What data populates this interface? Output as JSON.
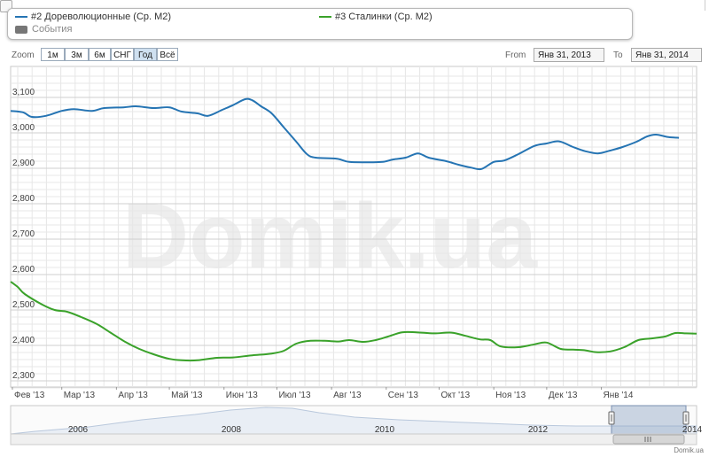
{
  "legend": {
    "series1": "#2 Дореволюционные (Ср. M2)",
    "series2": "#3 Сталинки (Ср. M2)",
    "events": "События"
  },
  "toolbar": {
    "zoom_label": "Zoom",
    "buttons": [
      "1м",
      "3м",
      "6м",
      "СНГ",
      "Год",
      "Всё"
    ],
    "active_button": "Год",
    "from_label": "From",
    "from_value": "Янв 31, 2013",
    "to_label": "To",
    "to_value": "Янв 31, 2014"
  },
  "watermark": "Domik.ua",
  "credit": "Domik.ua",
  "colors": {
    "series1": "#2574b3",
    "series2": "#3aa22a",
    "grid": "#dcdcdc",
    "navigator": "#8fa4c4"
  },
  "navigator": {
    "years": [
      "2006",
      "2008",
      "2010",
      "2012",
      "2014"
    ]
  },
  "chart_data": {
    "type": "line",
    "x_ticks": [
      "Фев '13",
      "Мар '13",
      "Апр '13",
      "Май '13",
      "Июн '13",
      "Июл '13",
      "Авг '13",
      "Сен '13",
      "Окт '13",
      "Ноя '13",
      "Дек '13",
      "Янв '14"
    ],
    "y_ticks": [
      "3,100",
      "3,000",
      "2,900",
      "2,800",
      "2,700",
      "2,600",
      "2,500",
      "2,400",
      "2,300"
    ],
    "ylim": [
      2270,
      3170
    ],
    "grid": true,
    "series": [
      {
        "name": "#2 Дореволюционные (Ср. M2)",
        "points": [
          [
            "2013-01-31",
            3062
          ],
          [
            "2013-02-07",
            3058
          ],
          [
            "2013-02-12",
            3045
          ],
          [
            "2013-02-20",
            3048
          ],
          [
            "2013-03-01",
            3062
          ],
          [
            "2013-03-08",
            3067
          ],
          [
            "2013-03-18",
            3062
          ],
          [
            "2013-03-25",
            3070
          ],
          [
            "2013-04-05",
            3072
          ],
          [
            "2013-04-12",
            3075
          ],
          [
            "2013-04-22",
            3070
          ],
          [
            "2013-05-01",
            3072
          ],
          [
            "2013-05-08",
            3060
          ],
          [
            "2013-05-17",
            3055
          ],
          [
            "2013-05-23",
            3048
          ],
          [
            "2013-05-31",
            3065
          ],
          [
            "2013-06-06",
            3078
          ],
          [
            "2013-06-13",
            3095
          ],
          [
            "2013-06-17",
            3092
          ],
          [
            "2013-06-22",
            3075
          ],
          [
            "2013-06-28",
            3055
          ],
          [
            "2013-07-05",
            3015
          ],
          [
            "2013-07-12",
            2975
          ],
          [
            "2013-07-18",
            2940
          ],
          [
            "2013-07-23",
            2930
          ],
          [
            "2013-08-04",
            2927
          ],
          [
            "2013-08-11",
            2918
          ],
          [
            "2013-08-23",
            2917
          ],
          [
            "2013-08-30",
            2918
          ],
          [
            "2013-09-05",
            2925
          ],
          [
            "2013-09-12",
            2930
          ],
          [
            "2013-09-19",
            2942
          ],
          [
            "2013-09-25",
            2930
          ],
          [
            "2013-10-05",
            2920
          ],
          [
            "2013-10-12",
            2910
          ],
          [
            "2013-10-19",
            2902
          ],
          [
            "2013-10-25",
            2898
          ],
          [
            "2013-11-01",
            2918
          ],
          [
            "2013-11-07",
            2922
          ],
          [
            "2013-11-15",
            2940
          ],
          [
            "2013-11-24",
            2963
          ],
          [
            "2013-12-01",
            2970
          ],
          [
            "2013-12-08",
            2976
          ],
          [
            "2013-12-16",
            2960
          ],
          [
            "2013-12-23",
            2948
          ],
          [
            "2013-12-30",
            2942
          ],
          [
            "2014-01-06",
            2950
          ],
          [
            "2014-01-13",
            2960
          ],
          [
            "2014-01-21",
            2975
          ],
          [
            "2014-01-27",
            2990
          ],
          [
            "2014-02-01",
            2995
          ],
          [
            "2014-02-08",
            2988
          ],
          [
            "2014-02-14",
            2986
          ]
        ]
      },
      {
        "name": "#3 Сталинки (Ср. M2)",
        "points": [
          [
            "2013-01-31",
            2580
          ],
          [
            "2013-02-04",
            2565
          ],
          [
            "2013-02-08",
            2545
          ],
          [
            "2013-02-18",
            2515
          ],
          [
            "2013-02-25",
            2500
          ],
          [
            "2013-03-04",
            2495
          ],
          [
            "2013-03-12",
            2480
          ],
          [
            "2013-03-21",
            2460
          ],
          [
            "2013-03-29",
            2435
          ],
          [
            "2013-04-06",
            2410
          ],
          [
            "2013-04-14",
            2390
          ],
          [
            "2013-04-22",
            2375
          ],
          [
            "2013-05-01",
            2362
          ],
          [
            "2013-05-08",
            2358
          ],
          [
            "2013-05-17",
            2358
          ],
          [
            "2013-05-28",
            2365
          ],
          [
            "2013-06-06",
            2366
          ],
          [
            "2013-06-17",
            2372
          ],
          [
            "2013-06-28",
            2377
          ],
          [
            "2013-07-05",
            2385
          ],
          [
            "2013-07-12",
            2405
          ],
          [
            "2013-07-20",
            2413
          ],
          [
            "2013-07-28",
            2413
          ],
          [
            "2013-08-05",
            2411
          ],
          [
            "2013-08-11",
            2415
          ],
          [
            "2013-08-19",
            2410
          ],
          [
            "2013-08-26",
            2415
          ],
          [
            "2013-09-02",
            2425
          ],
          [
            "2013-09-10",
            2437
          ],
          [
            "2013-09-18",
            2437
          ],
          [
            "2013-09-28",
            2434
          ],
          [
            "2013-10-08",
            2436
          ],
          [
            "2013-10-16",
            2427
          ],
          [
            "2013-10-24",
            2417
          ],
          [
            "2013-10-30",
            2415
          ],
          [
            "2013-11-05",
            2397
          ],
          [
            "2013-11-15",
            2395
          ],
          [
            "2013-11-24",
            2403
          ],
          [
            "2013-12-01",
            2408
          ],
          [
            "2013-12-09",
            2390
          ],
          [
            "2013-12-16",
            2388
          ],
          [
            "2013-12-23",
            2386
          ],
          [
            "2013-12-29",
            2381
          ],
          [
            "2014-01-06",
            2383
          ],
          [
            "2014-01-14",
            2395
          ],
          [
            "2014-01-22",
            2415
          ],
          [
            "2014-01-30",
            2420
          ],
          [
            "2014-02-06",
            2425
          ],
          [
            "2014-02-12",
            2435
          ],
          [
            "2014-02-18",
            2434
          ],
          [
            "2014-02-24",
            2433
          ]
        ]
      }
    ]
  }
}
